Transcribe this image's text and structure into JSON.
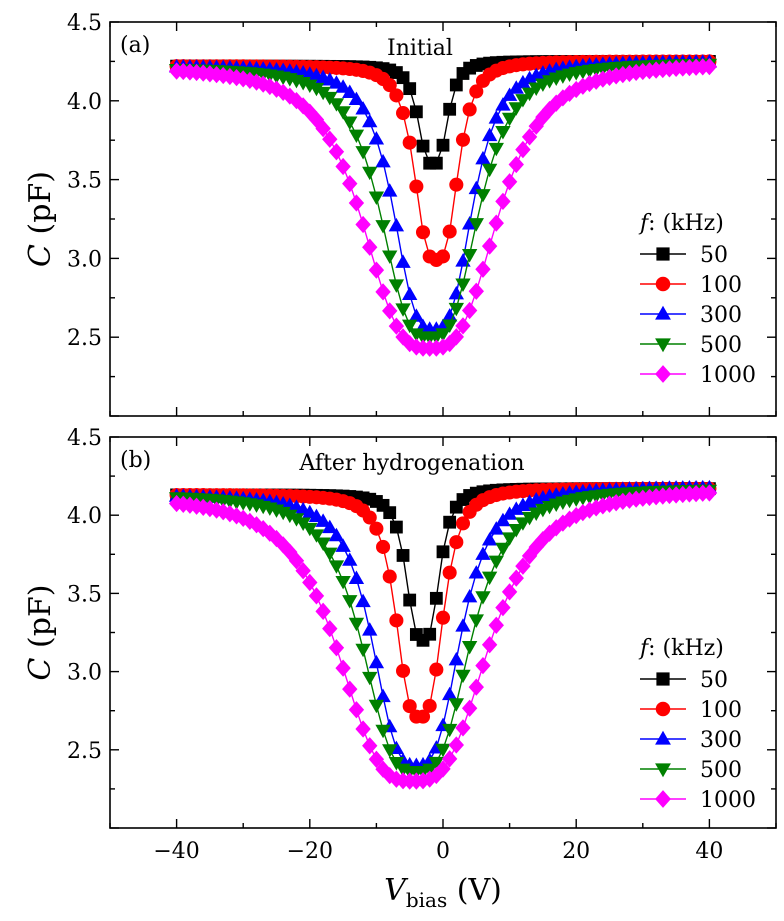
{
  "chart_data": [
    {
      "type": "line",
      "panel_label": "(a)",
      "title": "Initial",
      "xlabel": "V_bias (V)",
      "ylabel": "C (pF)",
      "xlim": [
        -50,
        50
      ],
      "ylim": [
        2.0,
        4.5
      ],
      "xticks": [
        -40,
        -20,
        0,
        20,
        40
      ],
      "yticks": [
        2.5,
        3.0,
        3.5,
        4.0,
        4.5
      ],
      "legend_title": "f: (kHz)",
      "legend_position": "right",
      "grid": false,
      "series": [
        {
          "name": "50",
          "color": "#000000",
          "marker": "square",
          "cmin": 3.6,
          "cmax_left": 4.22,
          "cmax_right": 4.25,
          "center": -1.5,
          "width": 2.4,
          "x_min": -40,
          "x_max": 40
        },
        {
          "name": "100",
          "color": "#ff0000",
          "marker": "circle",
          "cmin": 2.99,
          "cmax_left": 4.22,
          "cmax_right": 4.25,
          "center": -1.0,
          "width": 3.5,
          "x_min": -40,
          "x_max": 40
        },
        {
          "name": "300",
          "color": "#0000ff",
          "marker": "triangle-up",
          "cmin": 2.55,
          "cmax_left": 4.22,
          "cmax_right": 4.25,
          "center": -1.5,
          "width": 6.3,
          "x_min": -40,
          "x_max": 40
        },
        {
          "name": "500",
          "color": "#008000",
          "marker": "triangle-down",
          "cmin": 2.5,
          "cmax_left": 4.21,
          "cmax_right": 4.24,
          "center": -2.0,
          "width": 7.8,
          "x_min": -40,
          "x_max": 40
        },
        {
          "name": "1000",
          "color": "#ff00ff",
          "marker": "diamond",
          "cmin": 2.43,
          "cmax_left": 4.22,
          "cmax_right": 4.24,
          "center": -2.0,
          "width": 10.8,
          "x_min": -40,
          "x_max": 40
        }
      ]
    },
    {
      "type": "line",
      "panel_label": "(b)",
      "title": "After hydrogenation",
      "xlabel": "V_bias (V)",
      "ylabel": "C (pF)",
      "xlim": [
        -50,
        50
      ],
      "ylim": [
        2.0,
        4.5
      ],
      "xticks": [
        -40,
        -20,
        0,
        20,
        40
      ],
      "yticks": [
        2.5,
        3.0,
        3.5,
        4.0,
        4.5
      ],
      "legend_title": "f: (kHz)",
      "legend_position": "right",
      "grid": false,
      "series": [
        {
          "name": "50",
          "color": "#000000",
          "marker": "square",
          "cmin": 3.2,
          "cmax_left": 4.13,
          "cmax_right": 4.17,
          "center": -3.0,
          "width": 2.7,
          "x_min": -40,
          "x_max": 40
        },
        {
          "name": "100",
          "color": "#ff0000",
          "marker": "circle",
          "cmin": 2.71,
          "cmax_left": 4.13,
          "cmax_right": 4.17,
          "center": -3.5,
          "width": 3.8,
          "x_min": -40,
          "x_max": 40
        },
        {
          "name": "300",
          "color": "#0000ff",
          "marker": "triangle-up",
          "cmin": 2.4,
          "cmax_left": 4.13,
          "cmax_right": 4.18,
          "center": -4.0,
          "width": 7.0,
          "x_min": -40,
          "x_max": 40
        },
        {
          "name": "500",
          "color": "#008000",
          "marker": "triangle-down",
          "cmin": 2.36,
          "cmax_left": 4.13,
          "cmax_right": 4.17,
          "center": -4.0,
          "width": 8.6,
          "x_min": -40,
          "x_max": 40
        },
        {
          "name": "1000",
          "color": "#ff00ff",
          "marker": "diamond",
          "cmin": 2.3,
          "cmax_left": 4.13,
          "cmax_right": 4.17,
          "center": -4.5,
          "width": 12.0,
          "x_min": -40,
          "x_max": 40
        }
      ]
    }
  ],
  "axis_label": {
    "x_italic": "V",
    "x_subscript": "bias",
    "x_unit": "(V)",
    "y_italic": "C",
    "y_unit": "(pF)"
  },
  "tick_text": {
    "x": [
      "−40",
      "−20",
      "0",
      "20",
      "40"
    ],
    "y": [
      "2.5",
      "3.0",
      "3.5",
      "4.0",
      "4.5"
    ]
  },
  "legend_title_italic": "f",
  "legend_title_rest": ": (kHz)"
}
